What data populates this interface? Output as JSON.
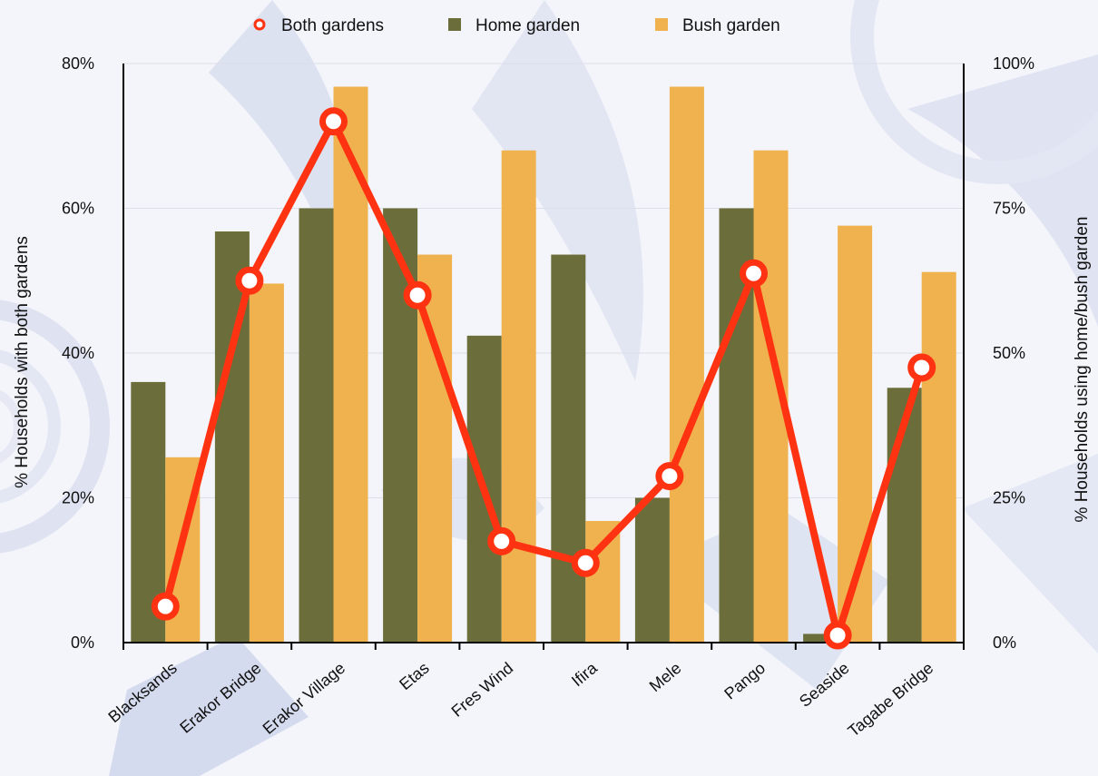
{
  "chart_data": {
    "type": "bar",
    "categories": [
      "Blacksands",
      "Erakor Bridge",
      "Erakor Village",
      "Etas",
      "Fres Wind",
      "Ifira",
      "Mele",
      "Pango",
      "Seaside",
      "Tagabe Bridge"
    ],
    "series": [
      {
        "name": "Home garden",
        "type": "bar",
        "axis": "right",
        "color": "#6b6e3a",
        "values": [
          45,
          71,
          75,
          75,
          53,
          67,
          25,
          75,
          1.5,
          44
        ]
      },
      {
        "name": "Bush garden",
        "type": "bar",
        "axis": "right",
        "color": "#efb24f",
        "values": [
          32,
          62,
          96,
          67,
          85,
          21,
          96,
          85,
          72,
          64
        ]
      },
      {
        "name": "Both gardens",
        "type": "line",
        "axis": "left",
        "color": "#ff3311",
        "values": [
          5,
          50,
          72,
          48,
          14,
          11,
          23,
          51,
          1,
          38
        ]
      }
    ],
    "y_left": {
      "label": "% Households with both gardens",
      "ticks": [
        "0%",
        "20%",
        "40%",
        "60%",
        "80%"
      ],
      "ylim": [
        0,
        80
      ]
    },
    "y_right": {
      "label": "% Households using home/bush garden",
      "ticks": [
        "0%",
        "25%",
        "50%",
        "75%",
        "100%"
      ],
      "ylim": [
        0,
        100
      ]
    },
    "legend": {
      "position": "top",
      "items": [
        "Both gardens",
        "Home garden",
        "Bush garden"
      ]
    },
    "grid": true
  }
}
